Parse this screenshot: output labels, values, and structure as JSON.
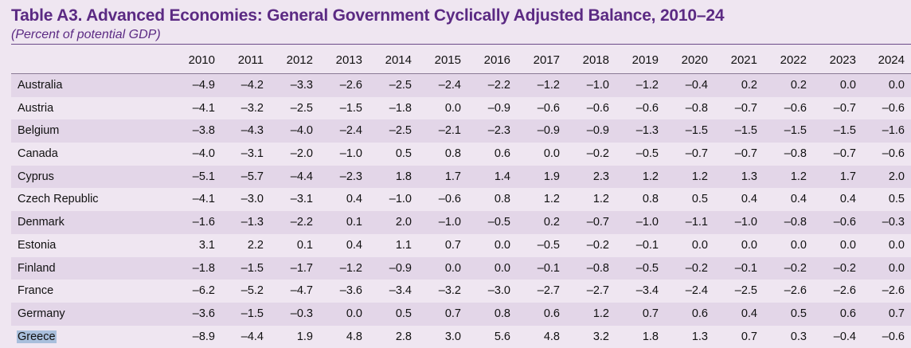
{
  "title": "Table A3. Advanced Economies: General Government Cyclically Adjusted Balance, 2010–24",
  "subtitle": "(Percent of potential GDP)",
  "years": [
    "2010",
    "2011",
    "2012",
    "2013",
    "2014",
    "2015",
    "2016",
    "2017",
    "2018",
    "2019",
    "2020",
    "2021",
    "2022",
    "2023",
    "2024"
  ],
  "rows": [
    {
      "country": "Australia",
      "values": [
        "–4.9",
        "–4.2",
        "–3.3",
        "–2.6",
        "–2.5",
        "–2.4",
        "–2.2",
        "–1.2",
        "–1.0",
        "–1.2",
        "–0.4",
        "0.2",
        "0.2",
        "0.0",
        "0.0"
      ]
    },
    {
      "country": "Austria",
      "values": [
        "–4.1",
        "–3.2",
        "–2.5",
        "–1.5",
        "–1.8",
        "0.0",
        "–0.9",
        "–0.6",
        "–0.6",
        "–0.6",
        "–0.8",
        "–0.7",
        "–0.6",
        "–0.7",
        "–0.6"
      ]
    },
    {
      "country": "Belgium",
      "values": [
        "–3.8",
        "–4.3",
        "–4.0",
        "–2.4",
        "–2.5",
        "–2.1",
        "–2.3",
        "–0.9",
        "–0.9",
        "–1.3",
        "–1.5",
        "–1.5",
        "–1.5",
        "–1.5",
        "–1.6"
      ]
    },
    {
      "country": "Canada",
      "values": [
        "–4.0",
        "–3.1",
        "–2.0",
        "–1.0",
        "0.5",
        "0.8",
        "0.6",
        "0.0",
        "–0.2",
        "–0.5",
        "–0.7",
        "–0.7",
        "–0.8",
        "–0.7",
        "–0.6"
      ]
    },
    {
      "country": "Cyprus",
      "values": [
        "–5.1",
        "–5.7",
        "–4.4",
        "–2.3",
        "1.8",
        "1.7",
        "1.4",
        "1.9",
        "2.3",
        "1.2",
        "1.2",
        "1.3",
        "1.2",
        "1.7",
        "2.0"
      ]
    },
    {
      "country": "Czech Republic",
      "values": [
        "–4.1",
        "–3.0",
        "–3.1",
        "0.4",
        "–1.0",
        "–0.6",
        "0.8",
        "1.2",
        "1.2",
        "0.8",
        "0.5",
        "0.4",
        "0.4",
        "0.4",
        "0.5"
      ]
    },
    {
      "country": "Denmark",
      "values": [
        "–1.6",
        "–1.3",
        "–2.2",
        "0.1",
        "2.0",
        "–1.0",
        "–0.5",
        "0.2",
        "–0.7",
        "–1.0",
        "–1.1",
        "–1.0",
        "–0.8",
        "–0.6",
        "–0.3"
      ]
    },
    {
      "country": "Estonia",
      "values": [
        "3.1",
        "2.2",
        "0.1",
        "0.4",
        "1.1",
        "0.7",
        "0.0",
        "–0.5",
        "–0.2",
        "–0.1",
        "0.0",
        "0.0",
        "0.0",
        "0.0",
        "0.0"
      ]
    },
    {
      "country": "Finland",
      "values": [
        "–1.8",
        "–1.5",
        "–1.7",
        "–1.2",
        "–0.9",
        "0.0",
        "0.0",
        "–0.1",
        "–0.8",
        "–0.5",
        "–0.2",
        "–0.1",
        "–0.2",
        "–0.2",
        "0.0"
      ]
    },
    {
      "country": "France",
      "values": [
        "–6.2",
        "–5.2",
        "–4.7",
        "–3.6",
        "–3.4",
        "–3.2",
        "–3.0",
        "–2.7",
        "–2.7",
        "–3.4",
        "–2.4",
        "–2.5",
        "–2.6",
        "–2.6",
        "–2.6"
      ]
    },
    {
      "country": "Germany",
      "values": [
        "–3.6",
        "–1.5",
        "–0.3",
        "0.0",
        "0.5",
        "0.7",
        "0.8",
        "0.6",
        "1.2",
        "0.7",
        "0.6",
        "0.4",
        "0.5",
        "0.6",
        "0.7"
      ]
    },
    {
      "country": "Greece",
      "values": [
        "–8.9",
        "–4.4",
        "1.9",
        "4.8",
        "2.8",
        "3.0",
        "5.6",
        "4.8",
        "3.2",
        "1.8",
        "1.3",
        "0.7",
        "0.3",
        "–0.4",
        "–0.6"
      ],
      "selected": true
    }
  ]
}
